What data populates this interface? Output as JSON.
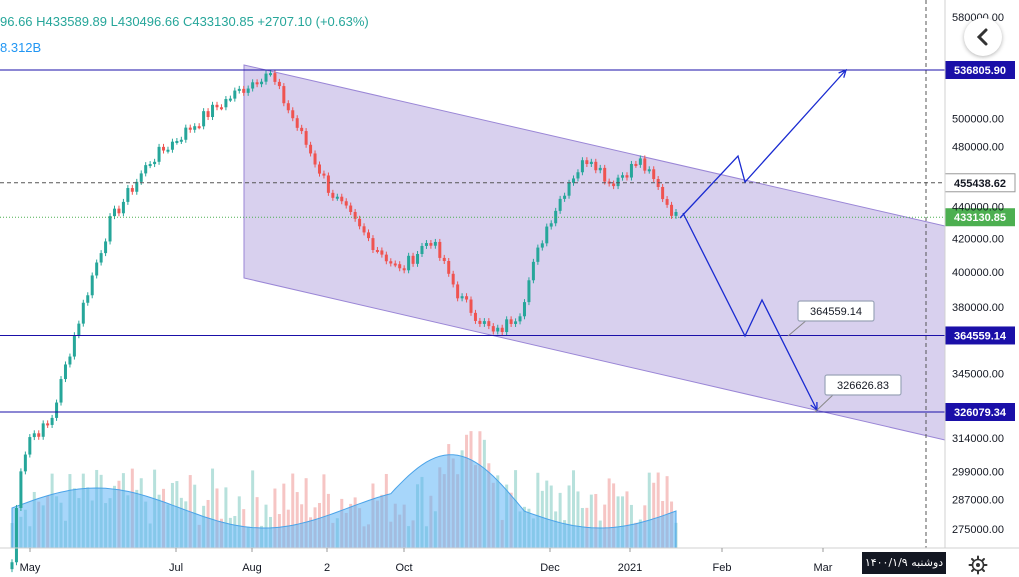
{
  "header": {
    "ohlc": [
      "96.66",
      "H433589.89",
      "L430496.66",
      "C433130.85",
      "+2707.10 (+0.63%)"
    ],
    "volume": "8.312B"
  },
  "footer": {
    "date_badge": "دوشنبه ۱۴۰۰/۱/۹"
  },
  "icons": {
    "back": "chevron-left-icon",
    "settings": "gear-icon"
  },
  "chart_data": {
    "type": "candlestick",
    "y_scale": "log",
    "y_ticks": [
      "580000.00",
      "500000.00",
      "480000.00",
      "440000.00",
      "420000.00",
      "400000.00",
      "380000.00",
      "345000.00",
      "314000.00",
      "299000.00",
      "287000.00",
      "275000.00"
    ],
    "x_ticks": [
      "May",
      "Jul",
      "Aug",
      "2",
      "Oct",
      "Dec",
      "2021",
      "Feb",
      "Mar"
    ],
    "close_path": [
      [
        "May",
        262000
      ],
      [
        "May",
        300000
      ],
      [
        "May",
        315000
      ],
      [
        "May",
        320000
      ],
      [
        "Jul",
        430000
      ],
      [
        "Jul",
        470000
      ],
      [
        "Jul",
        505000
      ],
      [
        "Aug",
        536000
      ],
      [
        "Aug",
        490000
      ],
      [
        "2",
        450000
      ],
      [
        "2",
        425000
      ],
      [
        "Oct",
        400000
      ],
      [
        "Oct",
        420000
      ],
      [
        "Oct",
        385000
      ],
      [
        "Dec",
        364500
      ],
      [
        "Dec",
        378000
      ],
      [
        "Dec",
        425000
      ],
      [
        "Dec",
        458000
      ],
      [
        "Dec",
        474000
      ],
      [
        "2021",
        455000
      ],
      [
        "2021",
        470000
      ],
      [
        "2021",
        433130
      ]
    ],
    "price_lines": [
      {
        "label": "536805.90",
        "value": 536805.9,
        "style": "solid",
        "color": "#1a0fa8"
      },
      {
        "label": "455438.62",
        "value": 455438.62,
        "style": "dashed",
        "color": "#555555"
      },
      {
        "label": "433130.85",
        "value": 433130.85,
        "style": "dotted",
        "color": "#4caf50"
      },
      {
        "label": "364559.14",
        "value": 364559.14,
        "style": "solid",
        "color": "#1a0fa8"
      },
      {
        "label": "326079.34",
        "value": 326079.34,
        "style": "solid",
        "color": "#1a0fa8"
      }
    ],
    "callouts": [
      "364559.14",
      "326626.83"
    ],
    "channel": {
      "color": "#b8a9e0",
      "description": "descending parallel channel"
    },
    "colors": {
      "up": "#26a69a",
      "down": "#ef5350",
      "volume_ma": "#5fb4f5"
    }
  }
}
